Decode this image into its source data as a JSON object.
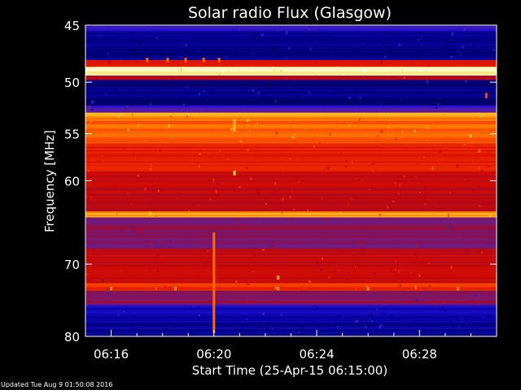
{
  "chart_data": {
    "type": "heatmap",
    "title": "Solar radio Flux (Glasgow)",
    "ylabel": "Frequency [MHz]",
    "xlabel": "Start Time (25-Apr-15 06:15:00)",
    "ylim": [
      45,
      80
    ],
    "xlim_minutes": [
      15.0,
      31.0
    ],
    "y_ticks": [
      45,
      50,
      55,
      60,
      70,
      80
    ],
    "y_tick_labels": [
      "45",
      "50",
      "55",
      "60",
      "70",
      "80"
    ],
    "x_ticks_minutes": [
      16,
      20,
      24,
      28
    ],
    "x_tick_labels": [
      "06:16",
      "06:20",
      "06:24",
      "06:28"
    ],
    "colors": {
      "background": "#000000",
      "text": "#ffffff"
    },
    "bands": [
      {
        "from_mhz": 45.0,
        "to_mhz": 45.5,
        "level": 0.22
      },
      {
        "from_mhz": 45.5,
        "to_mhz": 48.0,
        "level": 0.08
      },
      {
        "from_mhz": 48.0,
        "to_mhz": 48.6,
        "level": 0.55
      },
      {
        "from_mhz": 48.6,
        "to_mhz": 49.4,
        "level": 0.98
      },
      {
        "from_mhz": 49.4,
        "to_mhz": 49.8,
        "level": 0.5
      },
      {
        "from_mhz": 49.8,
        "to_mhz": 52.2,
        "level": 0.07
      },
      {
        "from_mhz": 52.2,
        "to_mhz": 52.9,
        "level": 0.25
      },
      {
        "from_mhz": 52.9,
        "to_mhz": 53.4,
        "level": 0.82
      },
      {
        "from_mhz": 53.4,
        "to_mhz": 56.0,
        "level": 0.74
      },
      {
        "from_mhz": 56.0,
        "to_mhz": 59.0,
        "level": 0.6
      },
      {
        "from_mhz": 59.0,
        "to_mhz": 63.5,
        "level": 0.5
      },
      {
        "from_mhz": 63.5,
        "to_mhz": 64.2,
        "level": 0.82
      },
      {
        "from_mhz": 64.2,
        "to_mhz": 68.0,
        "level": 0.36
      },
      {
        "from_mhz": 68.0,
        "to_mhz": 72.5,
        "level": 0.5
      },
      {
        "from_mhz": 72.5,
        "to_mhz": 73.5,
        "level": 0.64
      },
      {
        "from_mhz": 73.5,
        "to_mhz": 75.5,
        "level": 0.36
      },
      {
        "from_mhz": 75.5,
        "to_mhz": 78.0,
        "level": 0.16
      },
      {
        "from_mhz": 78.0,
        "to_mhz": 80.0,
        "level": 0.1
      }
    ],
    "features": [
      {
        "minute": 17.4,
        "from_mhz": 47.8,
        "to_mhz": 48.2,
        "level": 0.75
      },
      {
        "minute": 18.2,
        "from_mhz": 47.8,
        "to_mhz": 48.2,
        "level": 0.75
      },
      {
        "minute": 18.9,
        "from_mhz": 47.8,
        "to_mhz": 48.2,
        "level": 0.75
      },
      {
        "minute": 19.6,
        "from_mhz": 47.8,
        "to_mhz": 48.2,
        "level": 0.75
      },
      {
        "minute": 20.2,
        "from_mhz": 47.8,
        "to_mhz": 48.2,
        "level": 0.75
      },
      {
        "minute": 20.8,
        "from_mhz": 53.5,
        "to_mhz": 54.8,
        "level": 0.85
      },
      {
        "minute": 20.8,
        "from_mhz": 58.9,
        "to_mhz": 59.4,
        "level": 0.9
      },
      {
        "minute": 30.6,
        "from_mhz": 51.0,
        "to_mhz": 51.5,
        "level": 0.7
      },
      {
        "minute": 20.0,
        "from_mhz": 66.0,
        "to_mhz": 79.5,
        "level": 0.75
      },
      {
        "minute": 16.0,
        "from_mhz": 73.0,
        "to_mhz": 73.5,
        "level": 0.8
      },
      {
        "minute": 18.5,
        "from_mhz": 73.0,
        "to_mhz": 73.5,
        "level": 0.8
      },
      {
        "minute": 22.5,
        "from_mhz": 73.0,
        "to_mhz": 73.5,
        "level": 0.8
      },
      {
        "minute": 26.0,
        "from_mhz": 73.0,
        "to_mhz": 73.5,
        "level": 0.8
      },
      {
        "minute": 29.5,
        "from_mhz": 73.0,
        "to_mhz": 73.5,
        "level": 0.8
      },
      {
        "minute": 22.5,
        "from_mhz": 71.5,
        "to_mhz": 72.0,
        "level": 0.85
      }
    ]
  },
  "footer": {
    "updated": "Updated Tue Aug  9 01:50:08 2016"
  }
}
